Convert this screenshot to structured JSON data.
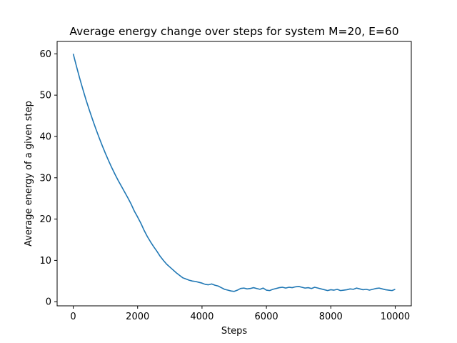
{
  "chart_data": {
    "type": "line",
    "title": "Average energy change over steps for system M=20, E=60",
    "xlabel": "Steps",
    "ylabel": "Average energy of a given step",
    "xlim": [
      -500,
      10500
    ],
    "ylim": [
      -1,
      63
    ],
    "xticks": [
      0,
      2000,
      4000,
      6000,
      8000,
      10000
    ],
    "yticks": [
      0,
      10,
      20,
      30,
      40,
      50,
      60
    ],
    "grid": false,
    "series": [
      {
        "color": "#1f77b4",
        "x": [
          0,
          100,
          200,
          300,
          400,
          500,
          600,
          700,
          800,
          900,
          1000,
          1100,
          1200,
          1300,
          1400,
          1500,
          1600,
          1700,
          1800,
          1900,
          2000,
          2100,
          2200,
          2300,
          2400,
          2500,
          2600,
          2700,
          2800,
          2900,
          3000,
          3100,
          3200,
          3300,
          3400,
          3500,
          3600,
          3700,
          3800,
          3900,
          4000,
          4100,
          4200,
          4300,
          4400,
          4500,
          4600,
          4700,
          4800,
          4900,
          5000,
          5100,
          5200,
          5300,
          5400,
          5500,
          5600,
          5700,
          5800,
          5900,
          6000,
          6100,
          6200,
          6300,
          6400,
          6500,
          6600,
          6700,
          6800,
          6900,
          7000,
          7100,
          7200,
          7300,
          7400,
          7500,
          7600,
          7700,
          7800,
          7900,
          8000,
          8100,
          8200,
          8300,
          8400,
          8500,
          8600,
          8700,
          8800,
          8900,
          9000,
          9100,
          9200,
          9300,
          9400,
          9500,
          9600,
          9700,
          9800,
          9900,
          10000
        ],
        "y": [
          60.0,
          57.0,
          54.1,
          51.4,
          48.8,
          46.4,
          44.1,
          41.9,
          39.8,
          37.8,
          35.9,
          34.1,
          32.4,
          30.8,
          29.3,
          27.9,
          26.5,
          25.1,
          23.6,
          21.9,
          20.5,
          19.0,
          17.3,
          15.8,
          14.5,
          13.3,
          12.2,
          11.0,
          10.0,
          9.1,
          8.4,
          7.7,
          7.0,
          6.4,
          5.8,
          5.5,
          5.2,
          5.0,
          4.9,
          4.7,
          4.5,
          4.2,
          4.1,
          4.3,
          4.0,
          3.8,
          3.4,
          3.0,
          2.8,
          2.6,
          2.5,
          2.8,
          3.2,
          3.3,
          3.1,
          3.2,
          3.4,
          3.2,
          3.0,
          3.3,
          2.8,
          2.7,
          3.0,
          3.2,
          3.4,
          3.5,
          3.3,
          3.5,
          3.4,
          3.6,
          3.7,
          3.5,
          3.3,
          3.4,
          3.2,
          3.5,
          3.3,
          3.1,
          2.9,
          2.7,
          2.9,
          2.8,
          3.0,
          2.7,
          2.8,
          2.9,
          3.1,
          3.0,
          3.3,
          3.1,
          2.9,
          3.0,
          2.8,
          3.0,
          3.2,
          3.3,
          3.1,
          2.9,
          2.8,
          2.7,
          3.0
        ]
      }
    ]
  }
}
